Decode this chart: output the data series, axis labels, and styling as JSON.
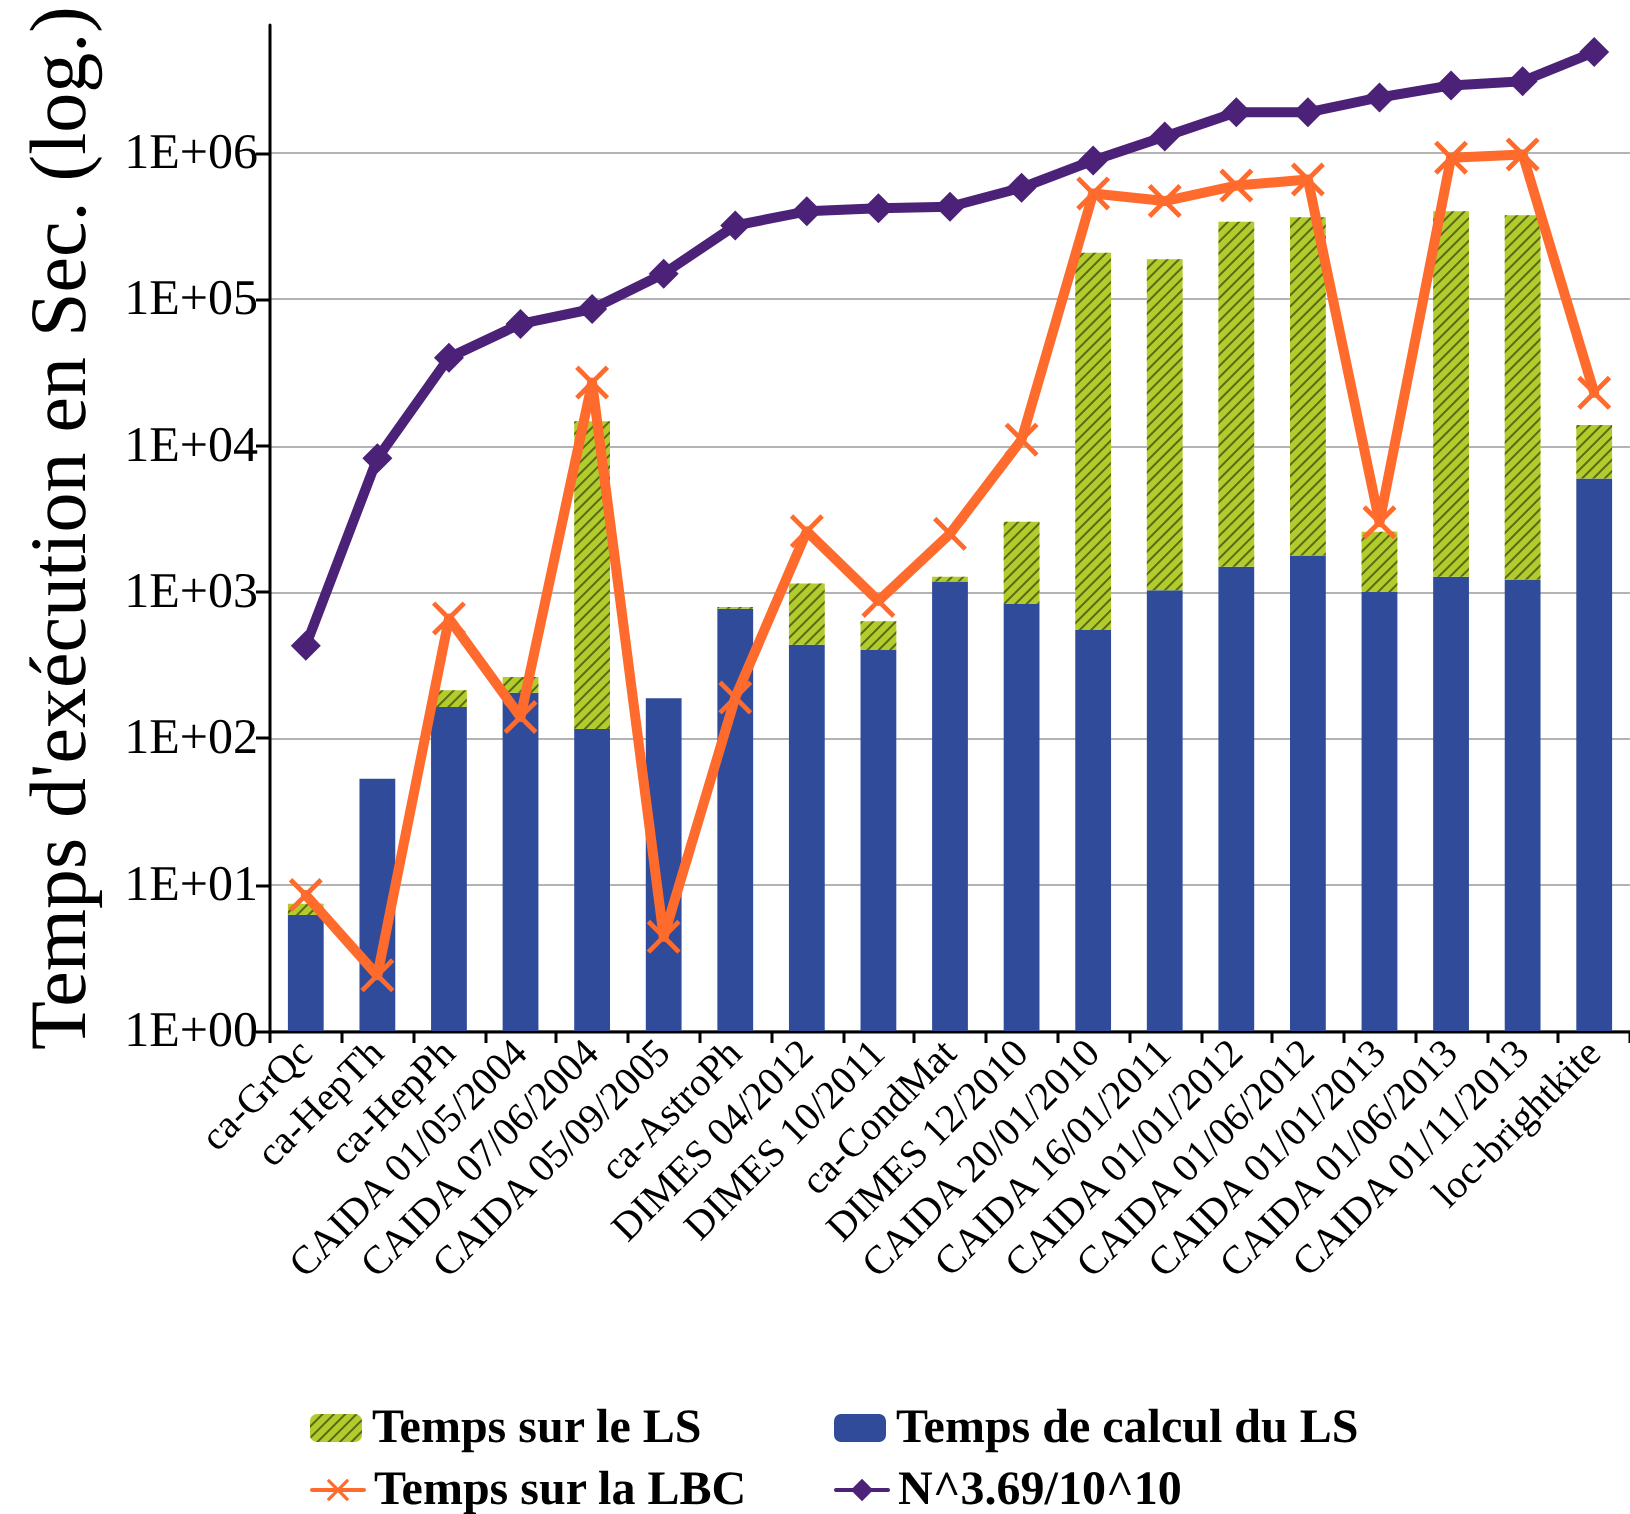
{
  "chart_data": {
    "type": "bar",
    "ylabel": "Temps d'exécution en Sec. (log.)",
    "categories": [
      "ca-GrQc",
      "ca-HepTh",
      "ca-HepPh",
      "CAIDA 01/05/2004",
      "CAIDA 07/06/2004",
      "CAIDA 05/09/2005",
      "ca-AstroPh",
      "DIMES 04/2012",
      "DIMES 10/2011",
      "ca-CondMat",
      "DIMES 12/2010",
      "CAIDA 20/01/2010",
      "CAIDA 16/01/2011",
      "CAIDA 01/01/2012",
      "CAIDA 01/06/2012",
      "CAIDA 01/01/2013",
      "CAIDA 01/06/2013",
      "CAIDA 01/11/2013",
      "loc-brightkite"
    ],
    "series": [
      {
        "name": "Temps de calcul du LS",
        "color": "#2f4b9a",
        "values": [
          6.2,
          53,
          164,
          205,
          116,
          188,
          770,
          436,
          401,
          1180,
          828,
          550,
          1030,
          1490,
          1780,
          1000,
          1270,
          1220,
          5970
        ]
      },
      {
        "name": "Temps sur le LS",
        "color": "#b2cc2e",
        "values": [
          1.2,
          null,
          49,
          58,
          14600,
          null,
          20,
          710,
          230,
          90,
          2200,
          208000,
          187000,
          338000,
          362000,
          1580,
          399000,
          375000,
          7900
        ]
      },
      {
        "name": "Temps sur la LBC",
        "type": "line",
        "color": "#ff6b2c",
        "marker": "cross",
        "values": [
          8.5,
          2.4,
          660,
          140,
          27000,
          4.4,
          190,
          2600,
          870,
          2500,
          11000,
          530000,
          470000,
          600000,
          660000,
          3000,
          930000,
          980000,
          23000
        ]
      },
      {
        "name": "N^3.69/10^10",
        "type": "line",
        "color": "#4c2178",
        "marker": "diamond",
        "values": [
          430,
          8200,
          40000,
          68000,
          86000,
          150000,
          320000,
          400000,
          420000,
          430000,
          580000,
          890000,
          1300000,
          1900000,
          1900000,
          2400000,
          2900000,
          3100000,
          4900000
        ]
      }
    ],
    "stacked": true,
    "log": "y",
    "ylim": [
      1,
      7500000
    ],
    "yticks": [
      {
        "value": 1,
        "label": "1E+00"
      },
      {
        "value": 10,
        "label": "1E+01"
      },
      {
        "value": 100,
        "label": "1E+02"
      },
      {
        "value": 1000,
        "label": "1E+03"
      },
      {
        "value": 10000,
        "label": "1E+04"
      },
      {
        "value": 100000,
        "label": "1E+05"
      },
      {
        "value": 1000000,
        "label": "1E+06"
      }
    ],
    "grid": "y",
    "legend": "bottom"
  }
}
